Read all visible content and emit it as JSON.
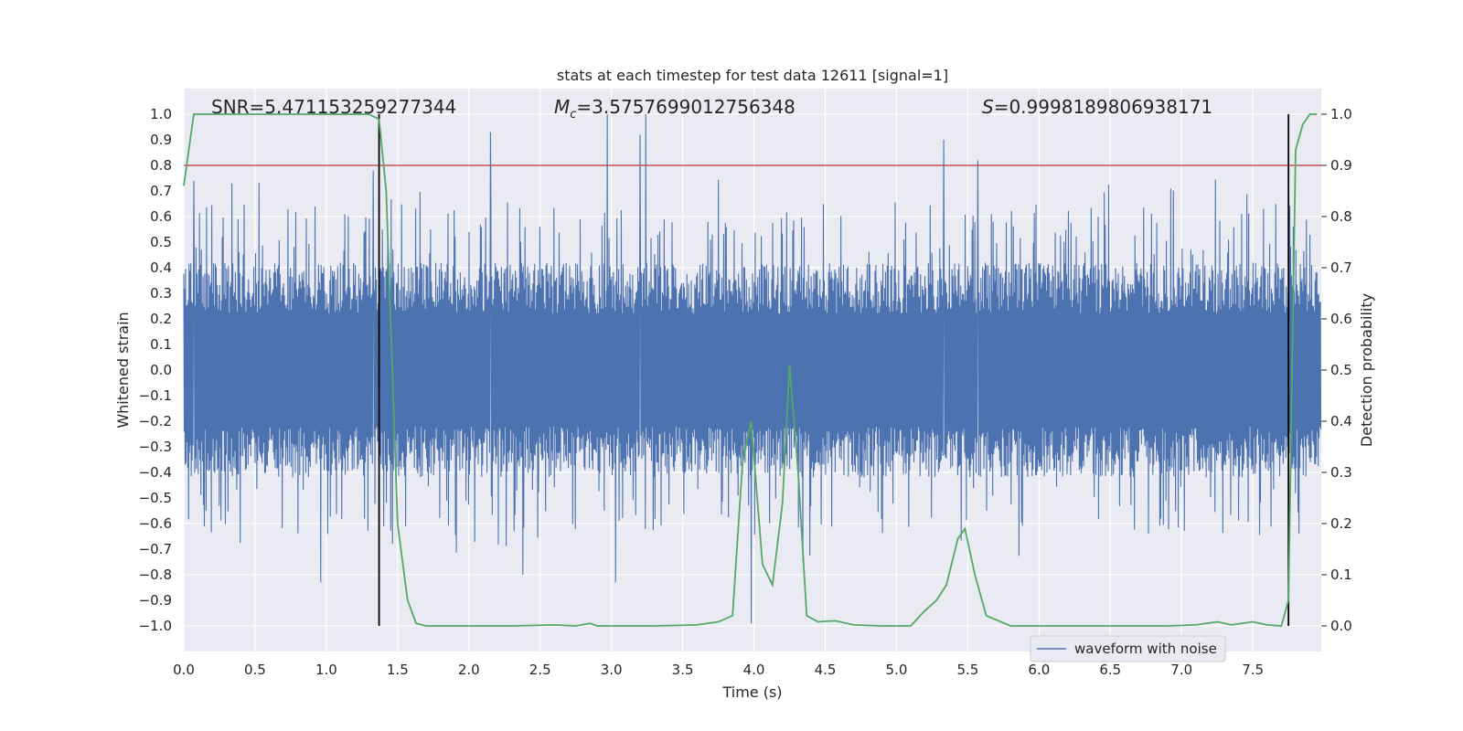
{
  "chart_data": {
    "type": "line",
    "title": "stats at each timestep for test data 12611 [signal=1]",
    "xlabel": "Time (s)",
    "ylabel_left": "Whitened strain",
    "ylabel_right": "Detection probability",
    "xlim": [
      0.0,
      7.98
    ],
    "ylim_left": [
      -1.1,
      1.1
    ],
    "ylim_right": [
      -0.05,
      1.05
    ],
    "x_ticks": [
      "0.0",
      "0.5",
      "1.0",
      "1.5",
      "2.0",
      "2.5",
      "3.0",
      "3.5",
      "4.0",
      "4.5",
      "5.0",
      "5.5",
      "6.0",
      "6.5",
      "7.0",
      "7.5"
    ],
    "y_left_ticks": [
      "1.0",
      "0.9",
      "0.8",
      "0.7",
      "0.6",
      "0.5",
      "0.4",
      "0.3",
      "0.2",
      "0.1",
      "0.0",
      "−0.1",
      "−0.2",
      "−0.3",
      "−0.4",
      "−0.5",
      "−0.6",
      "−0.7",
      "−0.8",
      "−0.9",
      "−1.0"
    ],
    "y_right_ticks": [
      "1.0",
      "0.9",
      "0.8",
      "0.7",
      "0.6",
      "0.5",
      "0.4",
      "0.3",
      "0.2",
      "0.1",
      "0.0"
    ],
    "grid": true,
    "annotations": {
      "snr": "SNR=5.471153259277344",
      "mc_symbol": "M",
      "mc_sub": "c",
      "mc_value": "=3.5757699012756348",
      "s_symbol": "S",
      "s_value": "=0.9998189806938171"
    },
    "legend": {
      "position": "bottom-right",
      "entries": [
        "waveform with noise"
      ]
    },
    "threshold": {
      "axis": "right",
      "y": 0.9,
      "color": "#c44e52"
    },
    "vertical_markers": {
      "x": [
        1.37,
        7.75
      ],
      "y_range": [
        -1.0,
        1.0
      ],
      "color": "#000000"
    },
    "series": [
      {
        "name": "waveform with noise",
        "axis": "left",
        "color": "#4c72b0",
        "note": "dense noise waveform; envelope approx ±0.4 with spikes up to about ±1.0",
        "notable_peaks": [
          {
            "x": 2.97,
            "y": 1.0
          },
          {
            "x": 3.24,
            "y": 1.0
          },
          {
            "x": 2.15,
            "y": 0.93
          },
          {
            "x": 3.2,
            "y": 0.92
          },
          {
            "x": 5.33,
            "y": 0.9
          },
          {
            "x": 5.57,
            "y": 0.82
          },
          {
            "x": 1.33,
            "y": 0.78
          },
          {
            "x": 0.07,
            "y": 0.74
          },
          {
            "x": 3.98,
            "y": -0.99
          },
          {
            "x": 0.96,
            "y": -0.83
          },
          {
            "x": 3.03,
            "y": -0.83
          },
          {
            "x": 2.38,
            "y": -0.8
          }
        ]
      },
      {
        "name": "detection probability",
        "axis": "right",
        "color": "#55a868",
        "x": [
          0.0,
          0.07,
          0.2,
          0.4,
          0.6,
          0.8,
          1.0,
          1.2,
          1.3,
          1.37,
          1.42,
          1.5,
          1.57,
          1.63,
          1.7,
          1.8,
          2.0,
          2.3,
          2.6,
          2.75,
          2.85,
          2.9,
          3.0,
          3.3,
          3.6,
          3.75,
          3.85,
          3.92,
          3.98,
          4.06,
          4.13,
          4.2,
          4.25,
          4.31,
          4.37,
          4.45,
          4.57,
          4.7,
          4.9,
          5.1,
          5.2,
          5.28,
          5.35,
          5.43,
          5.48,
          5.55,
          5.63,
          5.8,
          6.0,
          6.4,
          6.9,
          7.1,
          7.25,
          7.35,
          7.5,
          7.6,
          7.7,
          7.75,
          7.8,
          7.85,
          7.9,
          7.95
        ],
        "y": [
          0.86,
          1.0,
          1.0,
          1.0,
          1.0,
          1.0,
          1.0,
          1.0,
          1.0,
          0.99,
          0.85,
          0.2,
          0.05,
          0.005,
          0.0,
          0.0,
          0.0,
          0.0,
          0.002,
          0.0,
          0.005,
          0.0,
          0.0,
          0.0,
          0.002,
          0.008,
          0.02,
          0.32,
          0.4,
          0.12,
          0.08,
          0.24,
          0.51,
          0.3,
          0.02,
          0.008,
          0.01,
          0.002,
          0.0,
          0.0,
          0.03,
          0.05,
          0.08,
          0.17,
          0.19,
          0.1,
          0.02,
          0.0,
          0.0,
          0.0,
          0.0,
          0.002,
          0.008,
          0.002,
          0.008,
          0.002,
          0.0,
          0.05,
          0.93,
          0.98,
          1.0,
          1.0
        ]
      }
    ]
  }
}
